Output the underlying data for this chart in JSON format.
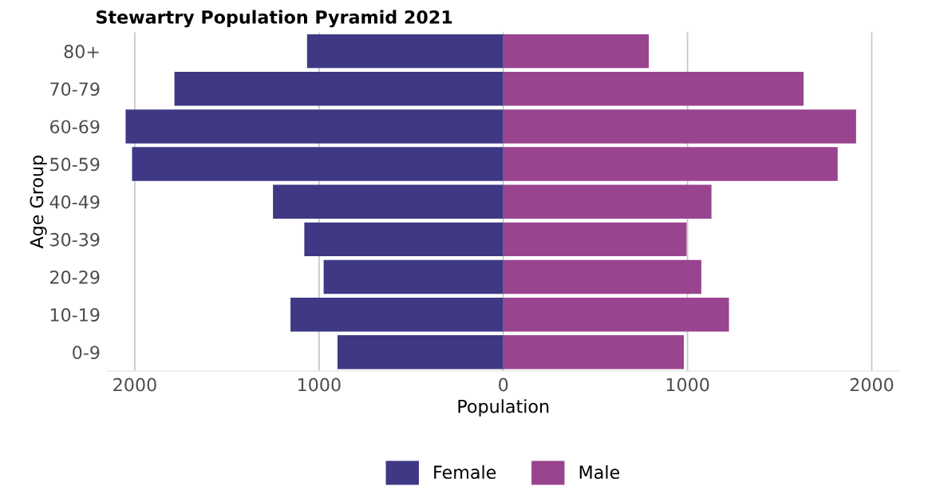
{
  "chart_data": {
    "type": "bar",
    "orientation": "horizontal",
    "stacked": true,
    "title": "Stewartry Population Pyramid 2021",
    "xlabel": "Population",
    "ylabel": "Age Group",
    "categories": [
      "80+",
      "70-79",
      "60-69",
      "50-59",
      "40-49",
      "30-39",
      "20-29",
      "10-19",
      "0-9"
    ],
    "series": [
      {
        "name": "Female",
        "color": "#3f3884",
        "values": [
          -1065,
          -1785,
          -2050,
          -2015,
          -1250,
          -1080,
          -975,
          -1155,
          -900
        ]
      },
      {
        "name": "Male",
        "color": "#99448f",
        "values": [
          790,
          1630,
          1915,
          1815,
          1130,
          995,
          1075,
          1225,
          980
        ]
      }
    ],
    "xlim": [
      -2150,
      2150
    ],
    "xticks": [
      {
        "value": -2000,
        "label": "2000"
      },
      {
        "value": -1000,
        "label": "1000"
      },
      0,
      1000,
      2000
    ],
    "grid": "x",
    "legend": "bottom"
  }
}
